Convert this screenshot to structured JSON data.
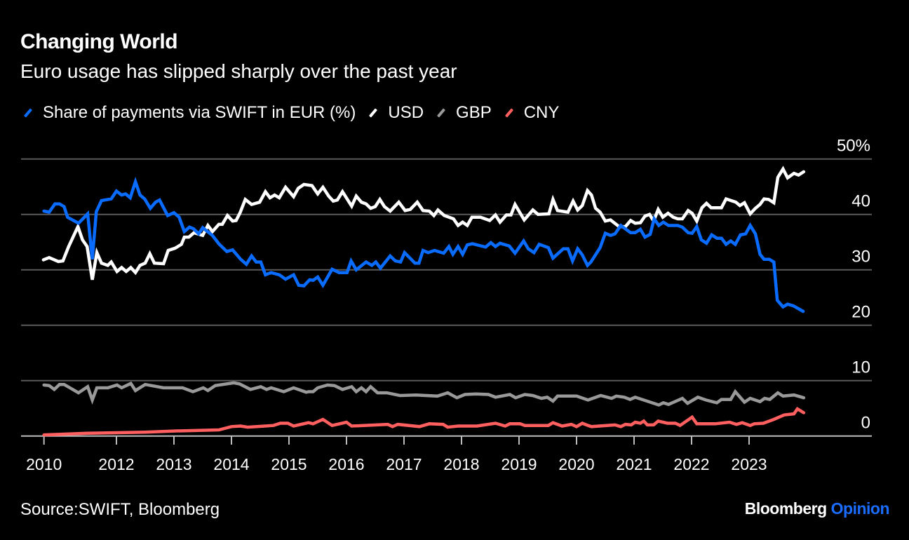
{
  "header": {
    "title": "Changing World",
    "subtitle": "Euro usage has slipped sharply over the past year"
  },
  "footer": {
    "source": "Source:SWIFT, Bloomberg",
    "logo_main": "Bloomberg",
    "logo_accent": "Opinion",
    "logo_accent_color": "#1a6dff"
  },
  "chart_data": {
    "type": "line",
    "title": "Changing World",
    "subtitle": "Euro usage has slipped sharply over the past year",
    "xlabel": "",
    "ylabel": "",
    "ylim": [
      0,
      50
    ],
    "grid": true,
    "legend_position": "top-left",
    "y_ticks": [
      {
        "value": 50,
        "label": "50%"
      },
      {
        "value": 40,
        "label": "40"
      },
      {
        "value": 30,
        "label": "30"
      },
      {
        "value": 20,
        "label": "20"
      },
      {
        "value": 10,
        "label": "10"
      },
      {
        "value": 0,
        "label": "0"
      }
    ],
    "x_ticks": [
      {
        "value": 2010.74,
        "label": "2010"
      },
      {
        "value": 2012,
        "label": "2012"
      },
      {
        "value": 2013,
        "label": "2013"
      },
      {
        "value": 2014,
        "label": "2014"
      },
      {
        "value": 2015,
        "label": "2015"
      },
      {
        "value": 2016,
        "label": "2016"
      },
      {
        "value": 2017,
        "label": "2017"
      },
      {
        "value": 2018,
        "label": "2018"
      },
      {
        "value": 2019,
        "label": "2019"
      },
      {
        "value": 2020,
        "label": "2020"
      },
      {
        "value": 2021,
        "label": "2021"
      },
      {
        "value": 2022,
        "label": "2022"
      },
      {
        "value": 2023,
        "label": "2023"
      }
    ],
    "series": [
      {
        "name": "Share of payments via SWIFT in EUR (%)",
        "color": "#0a6cff",
        "x": [
          2010.74,
          2010.83,
          2010.93,
          2011.01,
          2011.09,
          2011.15,
          2011.34,
          2011.5,
          2011.58,
          2011.65,
          2011.74,
          2011.91,
          2012.0,
          2012.09,
          2012.16,
          2012.24,
          2012.33,
          2012.41,
          2012.49,
          2012.59,
          2012.68,
          2012.75,
          2012.89,
          2013.0,
          2013.09,
          2013.18,
          2013.27,
          2013.34,
          2013.43,
          2013.5,
          2013.67,
          2013.78,
          2013.92,
          2014.02,
          2014.16,
          2014.26,
          2014.35,
          2014.43,
          2014.51,
          2014.59,
          2014.69,
          2014.83,
          2014.94,
          2015.08,
          2015.17,
          2015.26,
          2015.36,
          2015.42,
          2015.5,
          2015.59,
          2015.75,
          2015.87,
          2016.01,
          2016.08,
          2016.17,
          2016.34,
          2016.44,
          2016.51,
          2016.59,
          2016.76,
          2016.85,
          2016.94,
          2017.01,
          2017.19,
          2017.26,
          2017.33,
          2017.42,
          2017.53,
          2017.69,
          2017.78,
          2017.85,
          2017.94,
          2018.02,
          2018.1,
          2018.19,
          2018.42,
          2018.51,
          2018.59,
          2018.67,
          2018.83,
          2018.93,
          2019.08,
          2019.16,
          2019.26,
          2019.35,
          2019.51,
          2019.59,
          2019.77,
          2019.85,
          2019.93,
          2020.02,
          2020.1,
          2020.19,
          2020.25,
          2020.41,
          2020.5,
          2020.59,
          2020.67,
          2020.77,
          2020.94,
          2021.02,
          2021.11,
          2021.19,
          2021.28,
          2021.35,
          2021.43,
          2021.51,
          2021.6,
          2021.76,
          2021.84,
          2021.94,
          2022.01,
          2022.09,
          2022.17,
          2022.26,
          2022.35,
          2022.44,
          2022.52,
          2022.6,
          2022.68,
          2022.76,
          2022.85,
          2022.94,
          2023.02,
          2023.11,
          2023.19,
          2023.26,
          2023.35,
          2023.43,
          2023.49,
          2023.59,
          2023.67,
          2023.77,
          2023.94
        ],
        "values": [
          40.6,
          40.4,
          41.9,
          41.9,
          41.4,
          39.5,
          38.4,
          40.1,
          31.9,
          40.5,
          42.5,
          42.8,
          44.2,
          43.5,
          43.7,
          43.0,
          45.9,
          43.5,
          42.8,
          41.1,
          42.2,
          42.6,
          39.8,
          40.3,
          39.5,
          36.9,
          37.7,
          37.4,
          36.5,
          37.6,
          36.2,
          34.7,
          33.3,
          33.6,
          31.9,
          31.0,
          32.5,
          31.4,
          31.4,
          29.1,
          29.5,
          29.1,
          28.3,
          29.1,
          27.2,
          27.1,
          28.2,
          28.1,
          28.7,
          27.2,
          30.1,
          29.5,
          29.5,
          31.6,
          30.0,
          31.4,
          30.8,
          31.4,
          30.3,
          32.5,
          31.6,
          31.4,
          33.1,
          31.2,
          31.2,
          33.5,
          33.1,
          33.5,
          33.0,
          34.2,
          32.8,
          34.2,
          32.8,
          34.5,
          34.7,
          34.1,
          34.9,
          34.2,
          34.8,
          34.3,
          33.0,
          35.2,
          33.8,
          33.1,
          34.6,
          34.0,
          32.1,
          33.8,
          33.8,
          31.6,
          33.8,
          32.7,
          30.8,
          31.4,
          34.0,
          36.6,
          36.2,
          36.5,
          38.0,
          36.7,
          36.7,
          37.3,
          35.9,
          36.4,
          39.2,
          38.0,
          38.6,
          38.0,
          38.0,
          37.7,
          36.7,
          36.6,
          37.8,
          35.4,
          34.8,
          36.3,
          35.7,
          35.7,
          34.6,
          35.2,
          34.6,
          36.3,
          36.5,
          38.0,
          36.5,
          32.8,
          31.9,
          31.9,
          31.4,
          24.5,
          23.3,
          23.8,
          23.5,
          22.5
        ]
      },
      {
        "name": "USD",
        "color": "#ffffff",
        "x": [
          2010.73,
          2010.83,
          2010.99,
          2011.07,
          2011.17,
          2011.33,
          2011.41,
          2011.49,
          2011.58,
          2011.66,
          2011.74,
          2011.85,
          2011.91,
          2012.01,
          2012.09,
          2012.17,
          2012.25,
          2012.33,
          2012.41,
          2012.5,
          2012.58,
          2012.66,
          2012.82,
          2012.9,
          2013.02,
          2013.13,
          2013.18,
          2013.26,
          2013.35,
          2013.5,
          2013.59,
          2013.67,
          2013.78,
          2013.84,
          2013.93,
          2014.02,
          2014.08,
          2014.15,
          2014.24,
          2014.35,
          2014.49,
          2014.59,
          2014.67,
          2014.75,
          2014.83,
          2014.94,
          2015.08,
          2015.16,
          2015.26,
          2015.4,
          2015.5,
          2015.59,
          2015.69,
          2015.77,
          2015.84,
          2015.93,
          2016.09,
          2016.17,
          2016.26,
          2016.34,
          2016.42,
          2016.5,
          2016.58,
          2016.66,
          2016.76,
          2016.91,
          2017.02,
          2017.11,
          2017.23,
          2017.33,
          2017.44,
          2017.52,
          2017.59,
          2017.7,
          2017.86,
          2017.94,
          2018.02,
          2018.1,
          2018.18,
          2018.33,
          2018.49,
          2018.59,
          2018.67,
          2018.78,
          2018.86,
          2018.93,
          2019.09,
          2019.24,
          2019.33,
          2019.52,
          2019.59,
          2019.67,
          2019.85,
          2019.94,
          2020.02,
          2020.1,
          2020.19,
          2020.26,
          2020.33,
          2020.41,
          2020.5,
          2020.59,
          2020.74,
          2020.85,
          2020.94,
          2021.02,
          2021.11,
          2021.19,
          2021.27,
          2021.34,
          2021.42,
          2021.5,
          2021.59,
          2021.68,
          2021.76,
          2021.84,
          2021.94,
          2022.01,
          2022.09,
          2022.18,
          2022.26,
          2022.34,
          2022.52,
          2022.6,
          2022.77,
          2022.84,
          2022.92,
          2023.02,
          2023.11,
          2023.19,
          2023.26,
          2023.34,
          2023.43,
          2023.5,
          2023.59,
          2023.67,
          2023.78,
          2023.86,
          2023.95
        ],
        "values": [
          31.8,
          32.2,
          31.5,
          31.6,
          34.2,
          37.8,
          35.4,
          34.2,
          28.2,
          33.1,
          31.2,
          30.8,
          31.4,
          29.7,
          30.4,
          29.7,
          30.4,
          29.5,
          30.8,
          31.2,
          32.9,
          31.2,
          31.1,
          33.5,
          33.9,
          34.6,
          35.9,
          35.9,
          36.7,
          36.2,
          38.0,
          36.9,
          38.2,
          38.2,
          39.8,
          38.8,
          38.9,
          40.3,
          42.7,
          41.8,
          42.2,
          44.1,
          43.0,
          43.5,
          43.0,
          44.9,
          43.2,
          44.7,
          45.4,
          45.2,
          43.7,
          44.9,
          43.3,
          42.4,
          42.6,
          44.1,
          41.5,
          43.3,
          42.2,
          41.9,
          41.1,
          41.4,
          42.7,
          41.4,
          40.6,
          42.2,
          40.7,
          40.9,
          42.2,
          40.7,
          40.6,
          39.8,
          40.8,
          39.8,
          39.2,
          38.0,
          38.6,
          38.0,
          39.5,
          39.5,
          38.9,
          39.9,
          38.6,
          39.9,
          39.9,
          41.8,
          39.0,
          40.8,
          40.0,
          40.1,
          42.7,
          40.7,
          40.4,
          42.4,
          40.8,
          41.6,
          44.3,
          43.5,
          41.1,
          40.4,
          38.8,
          39.0,
          37.8,
          37.8,
          38.9,
          38.4,
          38.5,
          39.7,
          40.0,
          38.8,
          40.9,
          39.5,
          40.2,
          39.5,
          39.2,
          39.2,
          40.7,
          40.2,
          38.8,
          41.2,
          42.0,
          41.2,
          41.2,
          42.8,
          42.2,
          41.6,
          42.1,
          40.1,
          41.1,
          41.8,
          42.8,
          42.7,
          42.1,
          46.7,
          48.2,
          46.6,
          47.4,
          47.1,
          47.7
        ]
      },
      {
        "name": "GBP",
        "color": "#999999",
        "x": [
          2010.74,
          2010.83,
          2010.92,
          2011.01,
          2011.09,
          2011.34,
          2011.5,
          2011.58,
          2011.66,
          2011.85,
          2012.01,
          2012.09,
          2012.25,
          2012.33,
          2012.5,
          2012.82,
          2013.15,
          2013.33,
          2013.51,
          2013.59,
          2013.72,
          2014.04,
          2014.14,
          2014.33,
          2014.51,
          2014.61,
          2014.69,
          2014.91,
          2015.08,
          2015.3,
          2015.34,
          2015.42,
          2015.5,
          2015.67,
          2015.79,
          2015.93,
          2016.09,
          2016.17,
          2016.26,
          2016.34,
          2016.42,
          2016.54,
          2016.7,
          2016.93,
          2017.21,
          2017.58,
          2017.76,
          2017.92,
          2018.06,
          2018.25,
          2018.47,
          2018.59,
          2018.84,
          2018.94,
          2019.1,
          2019.24,
          2019.39,
          2019.49,
          2019.59,
          2019.67,
          2020.0,
          2020.2,
          2020.42,
          2020.61,
          2020.69,
          2020.83,
          2020.93,
          2021.02,
          2021.43,
          2021.51,
          2021.6,
          2021.84,
          2021.93,
          2022.11,
          2022.25,
          2022.44,
          2022.52,
          2022.68,
          2022.76,
          2022.92,
          2023.02,
          2023.19,
          2023.27,
          2023.36,
          2023.5,
          2023.59,
          2023.78,
          2023.95
        ],
        "values": [
          9.2,
          9.1,
          8.4,
          9.3,
          9.3,
          7.8,
          8.9,
          6.5,
          8.7,
          8.7,
          9.2,
          8.7,
          9.5,
          8.2,
          9.3,
          8.7,
          8.7,
          8.0,
          8.7,
          8.2,
          9.1,
          9.6,
          9.4,
          8.4,
          8.9,
          8.4,
          8.7,
          8.0,
          8.7,
          7.9,
          8.0,
          8.0,
          8.7,
          9.2,
          9.1,
          8.4,
          8.9,
          8.0,
          8.7,
          8.0,
          8.9,
          7.8,
          7.8,
          7.3,
          7.4,
          7.2,
          7.8,
          6.9,
          7.5,
          7.6,
          7.5,
          7.0,
          7.5,
          6.9,
          7.5,
          7.3,
          6.8,
          7.0,
          6.3,
          7.2,
          7.2,
          6.5,
          7.3,
          6.8,
          7.2,
          7.0,
          6.6,
          7.0,
          5.6,
          6.0,
          5.7,
          6.8,
          5.9,
          7.0,
          6.5,
          6.0,
          6.6,
          6.6,
          8.0,
          6.1,
          6.8,
          6.2,
          6.8,
          6.6,
          7.8,
          7.2,
          7.4,
          6.9
        ]
      },
      {
        "name": "CNY",
        "color": "#ff5f5f",
        "x": [
          2010.74,
          2011.5,
          2012.5,
          2013.0,
          2013.78,
          2014.0,
          2014.16,
          2014.28,
          2014.73,
          2014.85,
          2014.98,
          2015.08,
          2015.34,
          2015.42,
          2015.59,
          2015.75,
          2016.0,
          2016.09,
          2016.72,
          2016.8,
          2016.89,
          2017.27,
          2017.44,
          2017.68,
          2017.76,
          2017.94,
          2018.27,
          2018.59,
          2018.76,
          2018.84,
          2019.02,
          2019.1,
          2019.51,
          2019.59,
          2019.75,
          2019.91,
          2020.0,
          2020.1,
          2020.2,
          2020.26,
          2020.67,
          2020.77,
          2020.85,
          2020.95,
          2021.02,
          2021.11,
          2021.17,
          2021.23,
          2021.34,
          2021.42,
          2021.58,
          2021.72,
          2021.8,
          2022.01,
          2022.09,
          2022.41,
          2022.66,
          2022.78,
          2022.88,
          2023.02,
          2023.09,
          2023.25,
          2023.43,
          2023.61,
          2023.78,
          2023.84,
          2023.95
        ],
        "values": [
          0.2,
          0.5,
          0.7,
          0.9,
          1.1,
          1.7,
          1.8,
          1.6,
          1.9,
          2.3,
          2.3,
          1.8,
          2.4,
          2.2,
          3.0,
          1.9,
          2.5,
          1.8,
          2.1,
          1.7,
          2.1,
          1.7,
          2.2,
          2.1,
          1.6,
          1.8,
          1.8,
          2.3,
          1.8,
          2.2,
          2.2,
          1.9,
          1.9,
          2.4,
          1.8,
          2.1,
          1.7,
          2.3,
          1.9,
          1.7,
          2.0,
          1.7,
          2.1,
          2.0,
          2.5,
          2.3,
          2.7,
          2.0,
          2.0,
          2.7,
          2.3,
          2.3,
          1.9,
          3.4,
          2.2,
          2.2,
          2.5,
          2.1,
          2.4,
          1.9,
          2.2,
          2.3,
          3.0,
          3.8,
          4.0,
          4.9,
          4.2
        ]
      }
    ]
  }
}
